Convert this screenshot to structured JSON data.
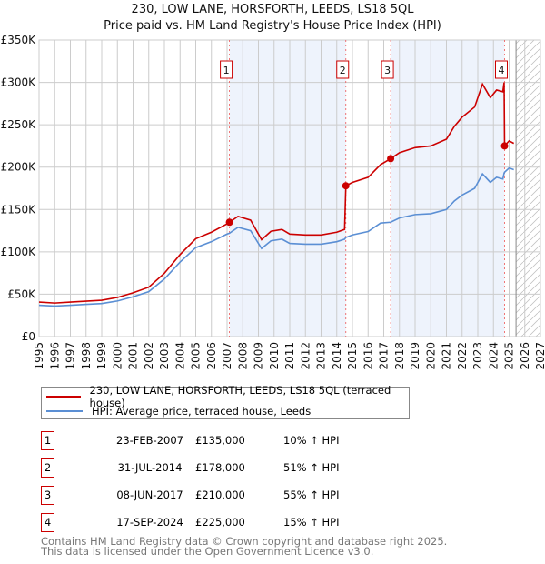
{
  "title_line1": "230, LOW LANE, HORSFORTH, LEEDS, LS18 5QL",
  "title_line2": "Price paid vs. HM Land Registry's House Price Index (HPI)",
  "colors": {
    "property": "#cc0000",
    "hpi": "#5b8fd4",
    "shade": "#eef3fc"
  },
  "legend": [
    {
      "label": "230, LOW LANE, HORSFORTH, LEEDS, LS18 5QL (terraced house)"
    },
    {
      "label": "HPI: Average price, terraced house, Leeds"
    }
  ],
  "sales": [
    {
      "num": "1",
      "date": "23-FEB-2007",
      "year": 2007.15,
      "price": "£135,000",
      "value": 135000,
      "hpi": "10% ↑ HPI"
    },
    {
      "num": "2",
      "date": "31-JUL-2014",
      "year": 2014.58,
      "price": "£178,000",
      "value": 178000,
      "hpi": "51% ↑ HPI"
    },
    {
      "num": "3",
      "date": "08-JUN-2017",
      "year": 2017.44,
      "price": "£210,000",
      "value": 210000,
      "hpi": "55% ↑ HPI"
    },
    {
      "num": "4",
      "date": "17-SEP-2024",
      "year": 2024.71,
      "price": "£225,000",
      "value": 225000,
      "hpi": "15% ↑ HPI"
    }
  ],
  "footer_line1": "Contains HM Land Registry data © Crown copyright and database right 2025.",
  "footer_line2": "This data is licensed under the Open Government Licence v3.0.",
  "chart_data": {
    "type": "line",
    "title": "230, LOW LANE, HORSFORTH, LEEDS, LS18 5QL — Price paid vs. HM Land Registry's House Price Index (HPI)",
    "xlim": [
      1995,
      2027
    ],
    "ylim": [
      0,
      350000
    ],
    "xticks": [
      "1995",
      "1996",
      "1997",
      "1998",
      "1999",
      "2000",
      "2001",
      "2002",
      "2003",
      "2004",
      "2005",
      "2006",
      "2007",
      "2008",
      "2009",
      "2010",
      "2011",
      "2012",
      "2013",
      "2014",
      "2015",
      "2016",
      "2017",
      "2018",
      "2019",
      "2020",
      "2021",
      "2022",
      "2023",
      "2024",
      "2025",
      "2026",
      "2027"
    ],
    "yticks": [
      {
        "v": 0,
        "label": "£0"
      },
      {
        "v": 50000,
        "label": "£50K"
      },
      {
        "v": 100000,
        "label": "£100K"
      },
      {
        "v": 150000,
        "label": "£150K"
      },
      {
        "v": 200000,
        "label": "£200K"
      },
      {
        "v": 250000,
        "label": "£250K"
      },
      {
        "v": 300000,
        "label": "£300K"
      },
      {
        "v": 350000,
        "label": "£350K"
      }
    ],
    "shaded_ranges": [
      [
        2007.15,
        2014.58
      ],
      [
        2017.44,
        2024.71
      ]
    ],
    "forecast_from": 2025.44,
    "x": [
      1995,
      1996,
      1997,
      1998,
      1999,
      2000,
      2001,
      2002,
      2003,
      2004,
      2005,
      2006,
      2007,
      2007.15,
      2007.7,
      2008.5,
      2009.2,
      2009.8,
      2010.5,
      2011,
      2012,
      2013,
      2014,
      2014.5,
      2014.58,
      2015,
      2016,
      2016.8,
      2017.44,
      2018,
      2019,
      2020,
      2021,
      2021.5,
      2022,
      2022.8,
      2023.3,
      2023.8,
      2024.2,
      2024.6,
      2024.68,
      2024.71,
      2025.0,
      2025.3
    ],
    "series": [
      {
        "name": "230, LOW LANE, HORSFORTH, LEEDS, LS18 5QL (terraced house)",
        "values": [
          40700,
          39600,
          40700,
          41800,
          42900,
          46200,
          51700,
          58300,
          74800,
          96800,
          115500,
          123200,
          133100,
          135000,
          141900,
          137500,
          114400,
          124300,
          126500,
          121000,
          119900,
          119900,
          123200,
          126500,
          178000,
          182000,
          188000,
          203000,
          210000,
          217000,
          223000,
          225000,
          233000,
          248000,
          259000,
          271000,
          298000,
          282000,
          291000,
          289000,
          300000,
          225000,
          231000,
          228000
        ]
      },
      {
        "name": "HPI: Average price, terraced house, Leeds",
        "values": [
          37000,
          36000,
          37000,
          38000,
          39000,
          42000,
          47000,
          53000,
          68000,
          88000,
          105000,
          112000,
          121000,
          122000,
          129000,
          125000,
          104000,
          113000,
          115000,
          110000,
          109000,
          109000,
          112000,
          115000,
          117000,
          120000,
          124000,
          134000,
          135000,
          140000,
          144000,
          145000,
          150000,
          160000,
          167000,
          175000,
          192000,
          182000,
          188000,
          186000,
          193000,
          194000,
          199000,
          197000
        ]
      }
    ]
  }
}
